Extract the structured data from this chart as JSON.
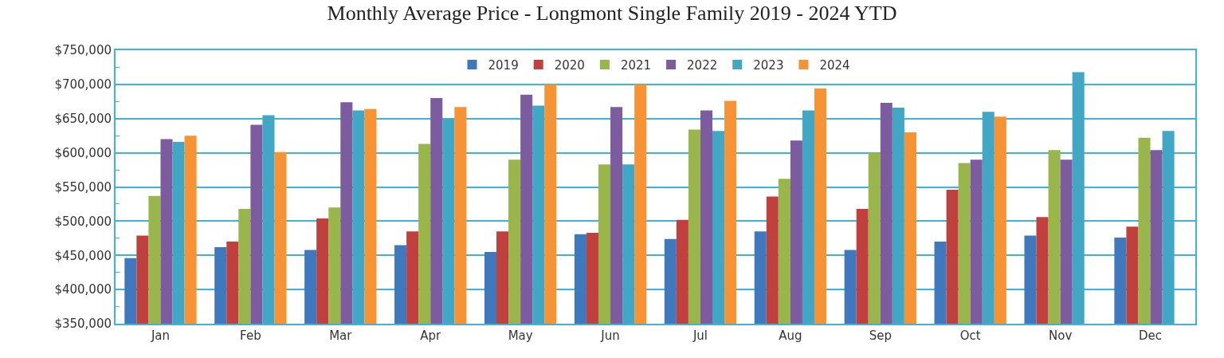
{
  "chart_data": {
    "type": "bar",
    "title": "Monthly Average Price - Longmont Single Family 2019 - 2024 YTD",
    "categories": [
      "Jan",
      "Feb",
      "Mar",
      "Apr",
      "May",
      "Jun",
      "Jul",
      "Aug",
      "Sep",
      "Oct",
      "Nov",
      "Dec"
    ],
    "series": [
      {
        "name": "2019",
        "color": "#3f78bd",
        "values": [
          446000,
          462000,
          458000,
          465000,
          455000,
          481000,
          474000,
          485000,
          458000,
          470000,
          479000,
          476000
        ]
      },
      {
        "name": "2020",
        "color": "#c0403e",
        "values": [
          479000,
          470000,
          504000,
          485000,
          485000,
          483000,
          502000,
          536000,
          518000,
          546000,
          506000,
          492000
        ]
      },
      {
        "name": "2021",
        "color": "#98b64a",
        "values": [
          537000,
          518000,
          520000,
          613000,
          590000,
          583000,
          634000,
          562000,
          600000,
          585000,
          604000,
          622000
        ]
      },
      {
        "name": "2022",
        "color": "#7d5b9f",
        "values": [
          620000,
          641000,
          674000,
          680000,
          685000,
          667000,
          662000,
          618000,
          673000,
          590000,
          590000,
          604000
        ]
      },
      {
        "name": "2023",
        "color": "#41a7c4",
        "values": [
          616000,
          655000,
          662000,
          650000,
          669000,
          583000,
          632000,
          662000,
          666000,
          660000,
          718000,
          632000
        ]
      },
      {
        "name": "2024",
        "color": "#f59335",
        "values": [
          625000,
          601000,
          664000,
          667000,
          700000,
          700000,
          676000,
          694000,
          630000,
          653000,
          null,
          null
        ]
      }
    ],
    "ylim": [
      350000,
      750000
    ],
    "yticks": [
      {
        "value": 350000,
        "label": "$350,000"
      },
      {
        "value": 375000,
        "label": null
      },
      {
        "value": 400000,
        "label": "$400,000"
      },
      {
        "value": 425000,
        "label": null
      },
      {
        "value": 450000,
        "label": "$450,000"
      },
      {
        "value": 475000,
        "label": null
      },
      {
        "value": 500000,
        "label": "$500,000"
      },
      {
        "value": 525000,
        "label": null
      },
      {
        "value": 550000,
        "label": "$550,000"
      },
      {
        "value": 575000,
        "label": null
      },
      {
        "value": 600000,
        "label": "$600,000"
      },
      {
        "value": 625000,
        "label": null
      },
      {
        "value": 650000,
        "label": "$650,000"
      },
      {
        "value": 675000,
        "label": null
      },
      {
        "value": 700000,
        "label": "$700,000"
      },
      {
        "value": 725000,
        "label": null
      },
      {
        "value": 750000,
        "label": "$750,000"
      }
    ],
    "grid": "y",
    "legend": "top"
  }
}
